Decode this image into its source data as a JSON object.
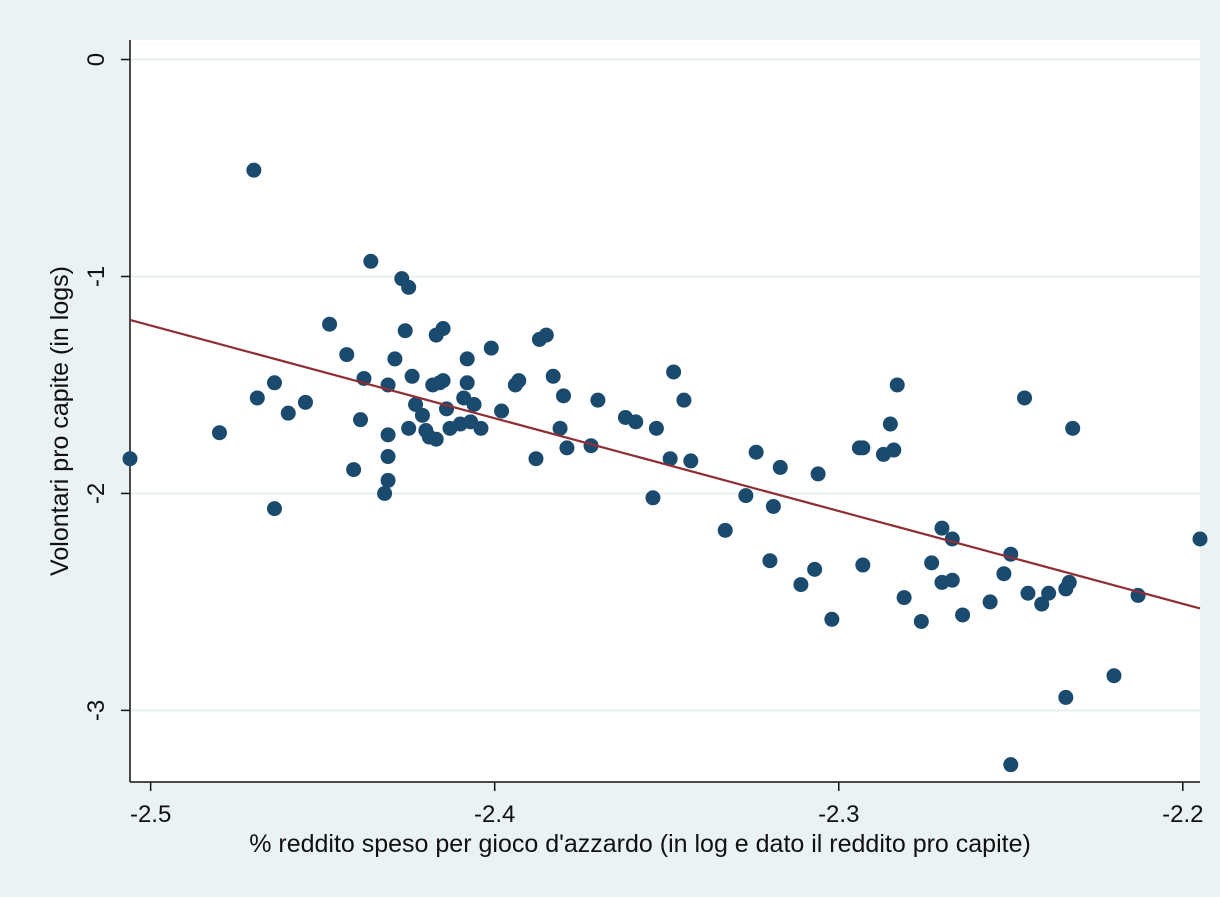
{
  "chart_data": {
    "type": "scatter",
    "title": "",
    "xlabel": "% reddito speso per gioco d'azzardo (in log e dato il reddito pro capite)",
    "ylabel": "Volontari pro capite (in logs)",
    "xlim": [
      -2.506,
      -2.195
    ],
    "ylim": [
      -3.33,
      0.09
    ],
    "xticks": [
      -2.5,
      -2.4,
      -2.3,
      -2.2
    ],
    "xtick_labels": [
      "-2.5",
      "-2.4",
      "-2.3",
      "-2.2"
    ],
    "yticks": [
      0,
      -1,
      -2,
      -3
    ],
    "ytick_labels": [
      "0",
      "-1",
      "-2",
      "-3"
    ],
    "grid": "horizontal",
    "colors": {
      "outer_background": "#eaf2f3",
      "plot_background": "#ffffff",
      "gridline": "#e8eff0",
      "marker": "#1a4a6e",
      "fit_line": "#8f2f35",
      "axis": "#111111"
    },
    "series": [
      {
        "type": "scatter",
        "points": [
          [
            -2.506,
            -1.84
          ],
          [
            -2.48,
            -1.72
          ],
          [
            -2.47,
            -0.51
          ],
          [
            -2.469,
            -1.56
          ],
          [
            -2.464,
            -1.49
          ],
          [
            -2.464,
            -2.07
          ],
          [
            -2.46,
            -1.63
          ],
          [
            -2.455,
            -1.58
          ],
          [
            -2.448,
            -1.22
          ],
          [
            -2.443,
            -1.36
          ],
          [
            -2.441,
            -1.89
          ],
          [
            -2.439,
            -1.66
          ],
          [
            -2.438,
            -1.47
          ],
          [
            -2.436,
            -0.93
          ],
          [
            -2.432,
            -2.0
          ],
          [
            -2.431,
            -1.94
          ],
          [
            -2.431,
            -1.83
          ],
          [
            -2.431,
            -1.73
          ],
          [
            -2.431,
            -1.5
          ],
          [
            -2.429,
            -1.38
          ],
          [
            -2.427,
            -1.01
          ],
          [
            -2.426,
            -1.25
          ],
          [
            -2.425,
            -1.05
          ],
          [
            -2.425,
            -1.7
          ],
          [
            -2.424,
            -1.46
          ],
          [
            -2.423,
            -1.59
          ],
          [
            -2.421,
            -1.64
          ],
          [
            -2.42,
            -1.71
          ],
          [
            -2.419,
            -1.74
          ],
          [
            -2.418,
            -1.5
          ],
          [
            -2.417,
            -1.75
          ],
          [
            -2.417,
            -1.27
          ],
          [
            -2.416,
            -1.49
          ],
          [
            -2.415,
            -1.24
          ],
          [
            -2.415,
            -1.48
          ],
          [
            -2.414,
            -1.61
          ],
          [
            -2.413,
            -1.7
          ],
          [
            -2.41,
            -1.68
          ],
          [
            -2.409,
            -1.56
          ],
          [
            -2.408,
            -1.38
          ],
          [
            -2.408,
            -1.49
          ],
          [
            -2.407,
            -1.67
          ],
          [
            -2.406,
            -1.59
          ],
          [
            -2.404,
            -1.7
          ],
          [
            -2.401,
            -1.33
          ],
          [
            -2.398,
            -1.62
          ],
          [
            -2.394,
            -1.5
          ],
          [
            -2.393,
            -1.48
          ],
          [
            -2.388,
            -1.84
          ],
          [
            -2.387,
            -1.29
          ],
          [
            -2.385,
            -1.27
          ],
          [
            -2.383,
            -1.46
          ],
          [
            -2.381,
            -1.7
          ],
          [
            -2.38,
            -1.55
          ],
          [
            -2.379,
            -1.79
          ],
          [
            -2.372,
            -1.78
          ],
          [
            -2.37,
            -1.57
          ],
          [
            -2.362,
            -1.65
          ],
          [
            -2.359,
            -1.67
          ],
          [
            -2.354,
            -2.02
          ],
          [
            -2.353,
            -1.7
          ],
          [
            -2.349,
            -1.84
          ],
          [
            -2.348,
            -1.44
          ],
          [
            -2.345,
            -1.57
          ],
          [
            -2.343,
            -1.85
          ],
          [
            -2.333,
            -2.17
          ],
          [
            -2.327,
            -2.01
          ],
          [
            -2.324,
            -1.81
          ],
          [
            -2.32,
            -2.31
          ],
          [
            -2.319,
            -2.06
          ],
          [
            -2.317,
            -1.88
          ],
          [
            -2.311,
            -2.42
          ],
          [
            -2.307,
            -2.35
          ],
          [
            -2.306,
            -1.91
          ],
          [
            -2.302,
            -2.58
          ],
          [
            -2.294,
            -1.79
          ],
          [
            -2.293,
            -1.79
          ],
          [
            -2.293,
            -2.33
          ],
          [
            -2.287,
            -1.82
          ],
          [
            -2.285,
            -1.68
          ],
          [
            -2.284,
            -1.8
          ],
          [
            -2.283,
            -1.5
          ],
          [
            -2.281,
            -2.48
          ],
          [
            -2.276,
            -2.59
          ],
          [
            -2.273,
            -2.32
          ],
          [
            -2.27,
            -2.41
          ],
          [
            -2.27,
            -2.16
          ],
          [
            -2.267,
            -2.21
          ],
          [
            -2.267,
            -2.4
          ],
          [
            -2.264,
            -2.56
          ],
          [
            -2.256,
            -2.5
          ],
          [
            -2.252,
            -2.37
          ],
          [
            -2.25,
            -2.28
          ],
          [
            -2.25,
            -3.25
          ],
          [
            -2.246,
            -1.56
          ],
          [
            -2.245,
            -2.46
          ],
          [
            -2.241,
            -2.51
          ],
          [
            -2.239,
            -2.46
          ],
          [
            -2.234,
            -2.44
          ],
          [
            -2.234,
            -2.94
          ],
          [
            -2.233,
            -2.41
          ],
          [
            -2.232,
            -1.7
          ],
          [
            -2.22,
            -2.84
          ],
          [
            -2.213,
            -2.47
          ],
          [
            -2.195,
            -2.21
          ]
        ]
      },
      {
        "type": "line",
        "points": [
          [
            -2.506,
            -1.2
          ],
          [
            -2.195,
            -2.53
          ]
        ]
      }
    ]
  }
}
